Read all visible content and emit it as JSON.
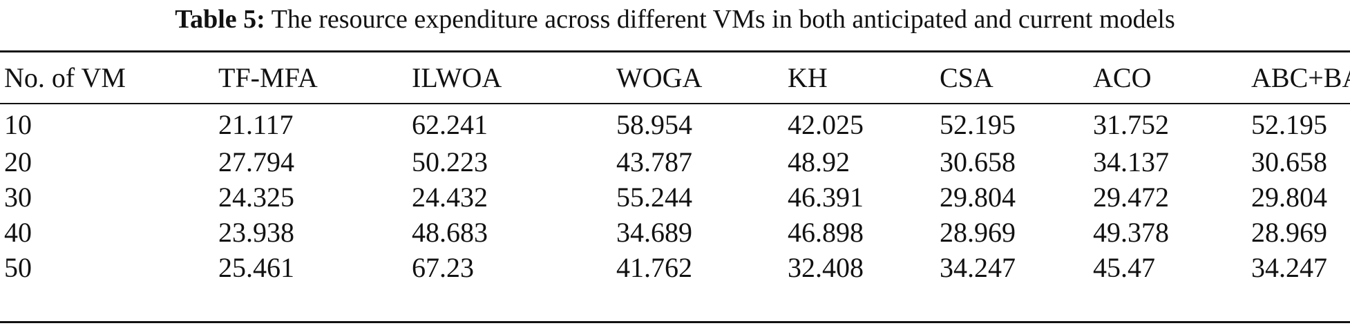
{
  "caption": {
    "label": "Table 5:",
    "text": "The resource expenditure across different VMs in both anticipated and current models"
  },
  "table": {
    "headers": [
      "No. of VM",
      "TF-MFA",
      "ILWOA",
      "WOGA",
      "KH",
      "CSA",
      "ACO",
      "ABC+BA"
    ],
    "rows": [
      [
        "10",
        "21.117",
        "62.241",
        "58.954",
        "42.025",
        "52.195",
        "31.752",
        "52.195"
      ],
      [
        "20",
        "27.794",
        "50.223",
        "43.787",
        "48.92",
        "30.658",
        "34.137",
        "30.658"
      ],
      [
        "30",
        "24.325",
        "24.432",
        "55.244",
        "46.391",
        "29.804",
        "29.472",
        "29.804"
      ],
      [
        "40",
        "23.938",
        "48.683",
        "34.689",
        "46.898",
        "28.969",
        "49.378",
        "28.969"
      ],
      [
        "50",
        "25.461",
        "67.23",
        "41.762",
        "32.408",
        "34.247",
        "45.47",
        "34.247"
      ]
    ]
  }
}
